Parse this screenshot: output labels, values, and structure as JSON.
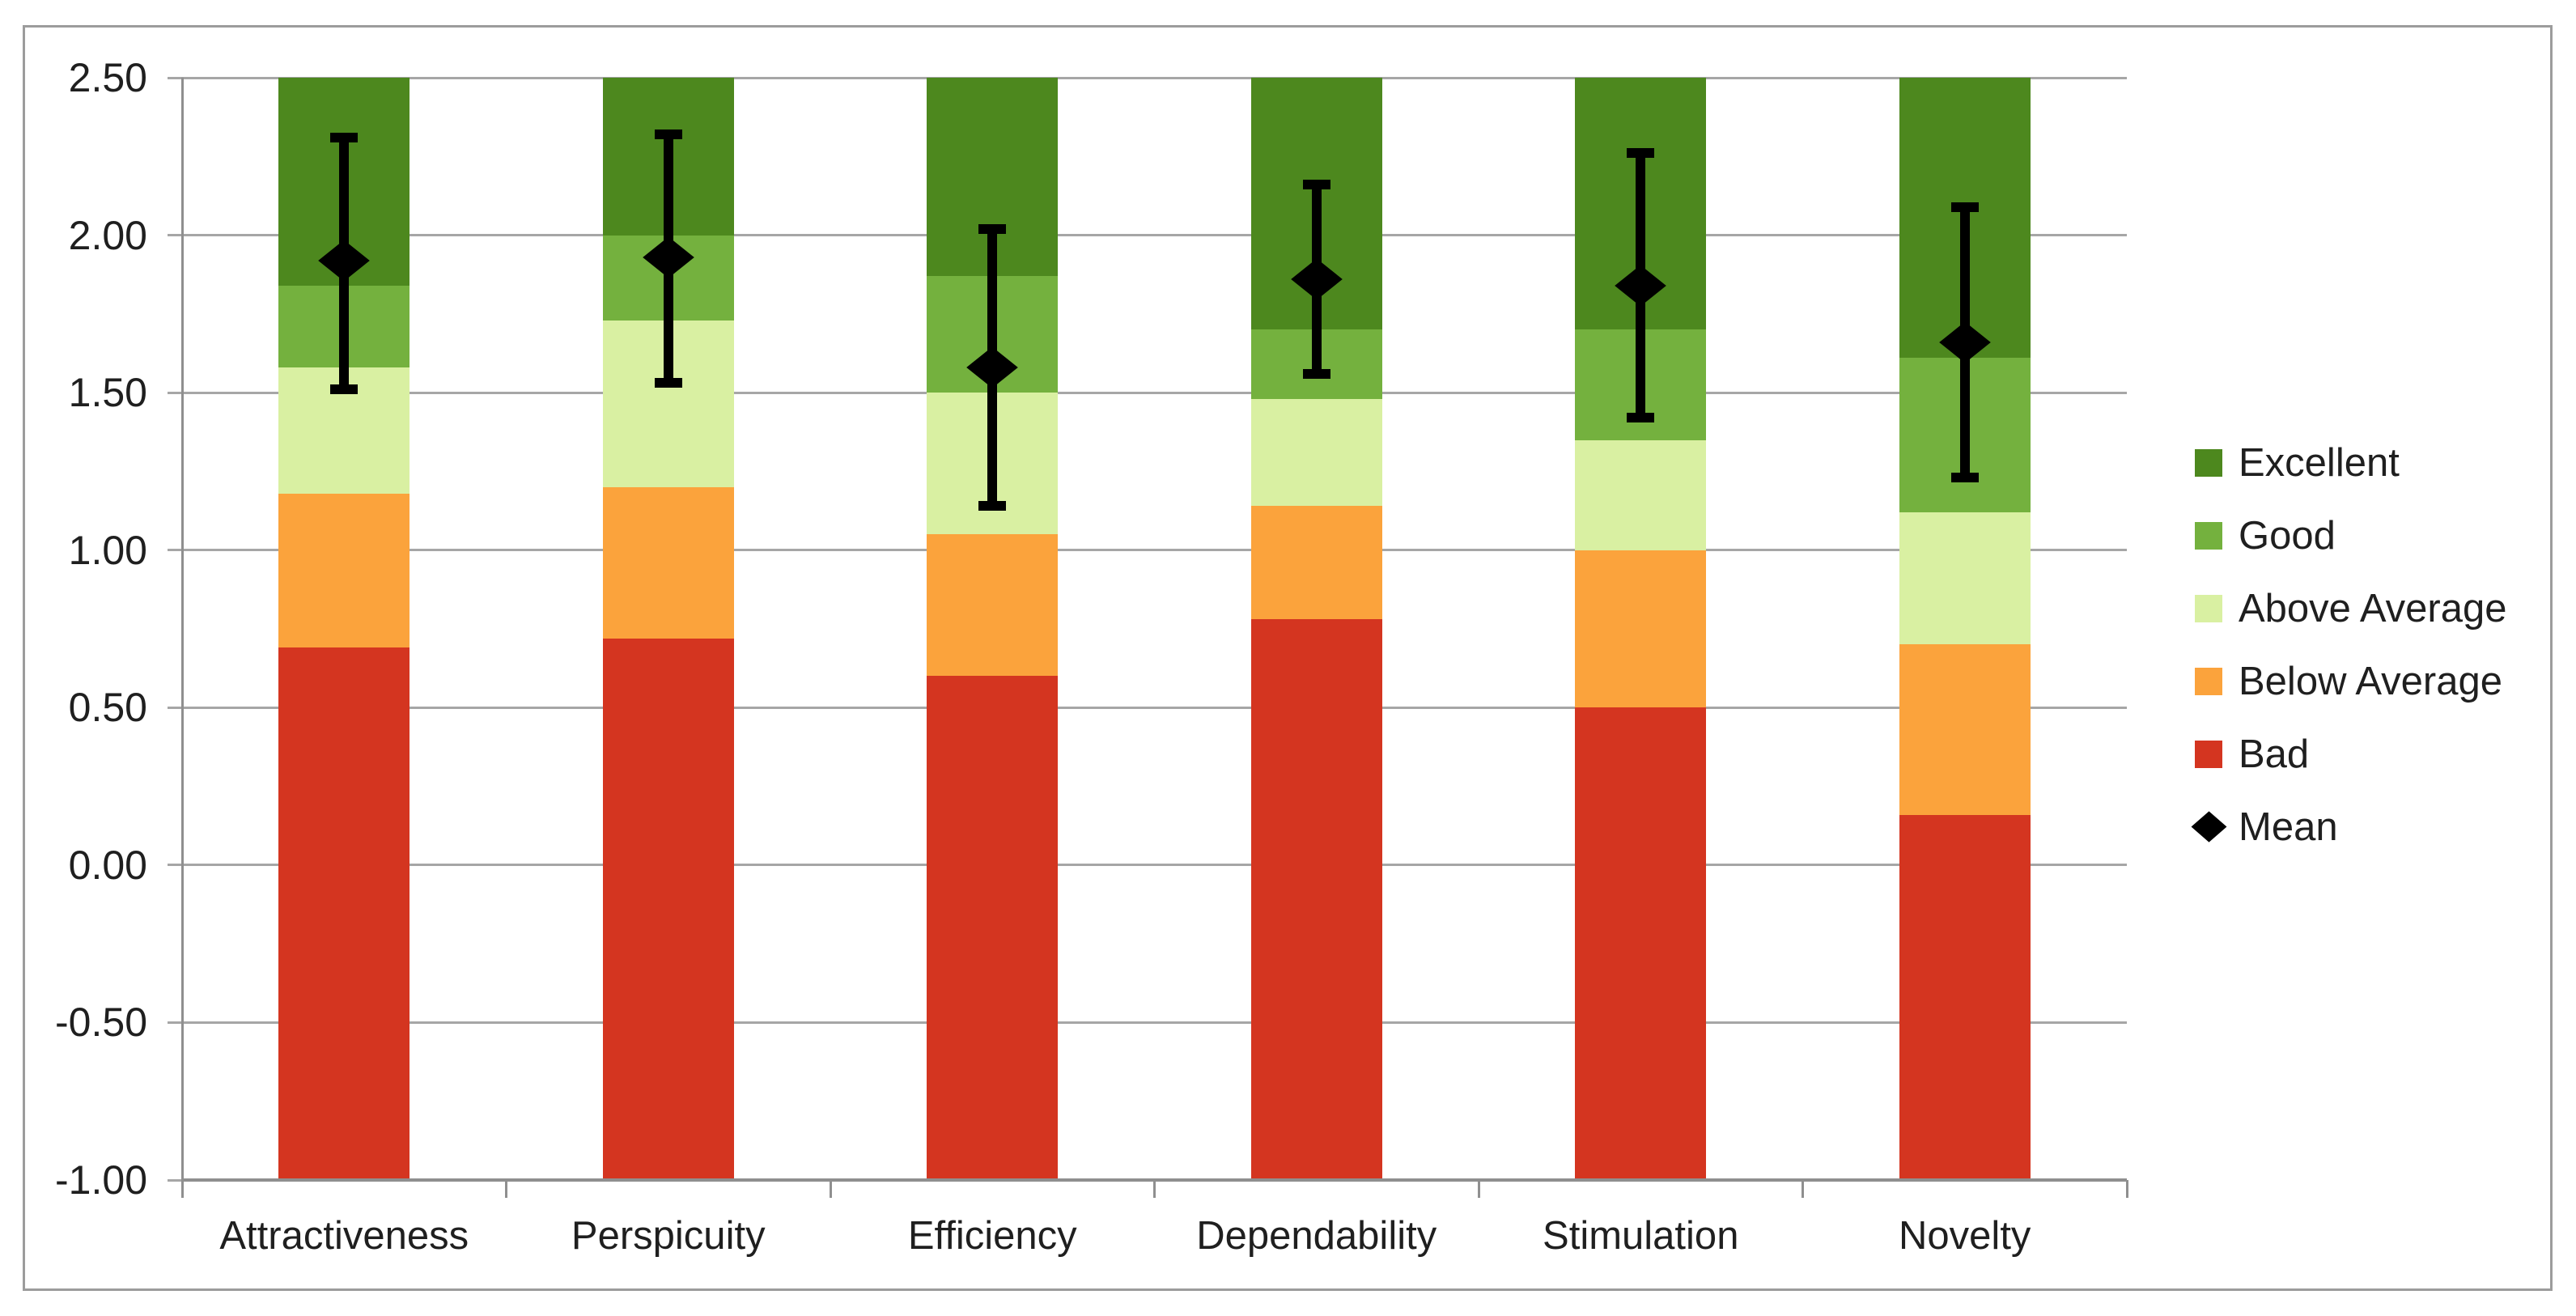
{
  "chart_data": {
    "type": "bar",
    "subtype": "stacked-benchmark-with-mean-errorbars",
    "title": "",
    "categories": [
      "Attractiveness",
      "Perspicuity",
      "Efficiency",
      "Dependability",
      "Stimulation",
      "Novelty"
    ],
    "y_axis": {
      "min": -1.0,
      "max": 2.5,
      "tick_step": 0.5,
      "tick_values": [
        2.5,
        2.0,
        1.5,
        1.0,
        0.5,
        0.0,
        -0.5,
        -1.0
      ],
      "tick_labels": [
        "2.50",
        "2.00",
        "1.50",
        "1.00",
        "0.50",
        "0.00",
        "-0.50",
        "-1.00"
      ]
    },
    "xlabel": "",
    "ylabel": "",
    "grid": true,
    "bar_base": -1.0,
    "bands_note": "stacked benchmark zones from bar_base up; 'tops' give the upper boundary of each zone per category",
    "bands": [
      {
        "name": "Bad",
        "color": "#D43520",
        "tops": [
          0.69,
          0.72,
          0.6,
          0.78,
          0.5,
          0.16
        ]
      },
      {
        "name": "Below Average",
        "color": "#FBA33C",
        "tops": [
          1.18,
          1.2,
          1.05,
          1.14,
          1.0,
          0.7
        ]
      },
      {
        "name": "Above Average",
        "color": "#D9F0A2",
        "tops": [
          1.58,
          1.73,
          1.5,
          1.48,
          1.35,
          1.12
        ]
      },
      {
        "name": "Good",
        "color": "#74B13E",
        "tops": [
          1.84,
          2.0,
          1.87,
          1.7,
          1.7,
          1.61
        ]
      },
      {
        "name": "Excellent",
        "color": "#4D881E",
        "tops": [
          2.5,
          2.5,
          2.5,
          2.5,
          2.5,
          2.5
        ]
      }
    ],
    "mean": {
      "name": "Mean",
      "color": "#000000",
      "values": [
        1.92,
        1.93,
        1.58,
        1.86,
        1.84,
        1.66
      ],
      "error_low": [
        1.51,
        1.53,
        1.14,
        1.56,
        1.42,
        1.23
      ],
      "error_high": [
        2.31,
        2.32,
        2.02,
        2.16,
        2.26,
        2.09
      ]
    },
    "legend": {
      "position": "right",
      "items": [
        "Excellent",
        "Good",
        "Above Average",
        "Below Average",
        "Bad",
        "Mean"
      ]
    },
    "style_colors": {
      "gridline": "#A6A6A6",
      "axis": "#8F8F8F",
      "chart_border": "#9C9C9C",
      "text": "#1F1F1F",
      "background": "#FFFFFF"
    }
  }
}
